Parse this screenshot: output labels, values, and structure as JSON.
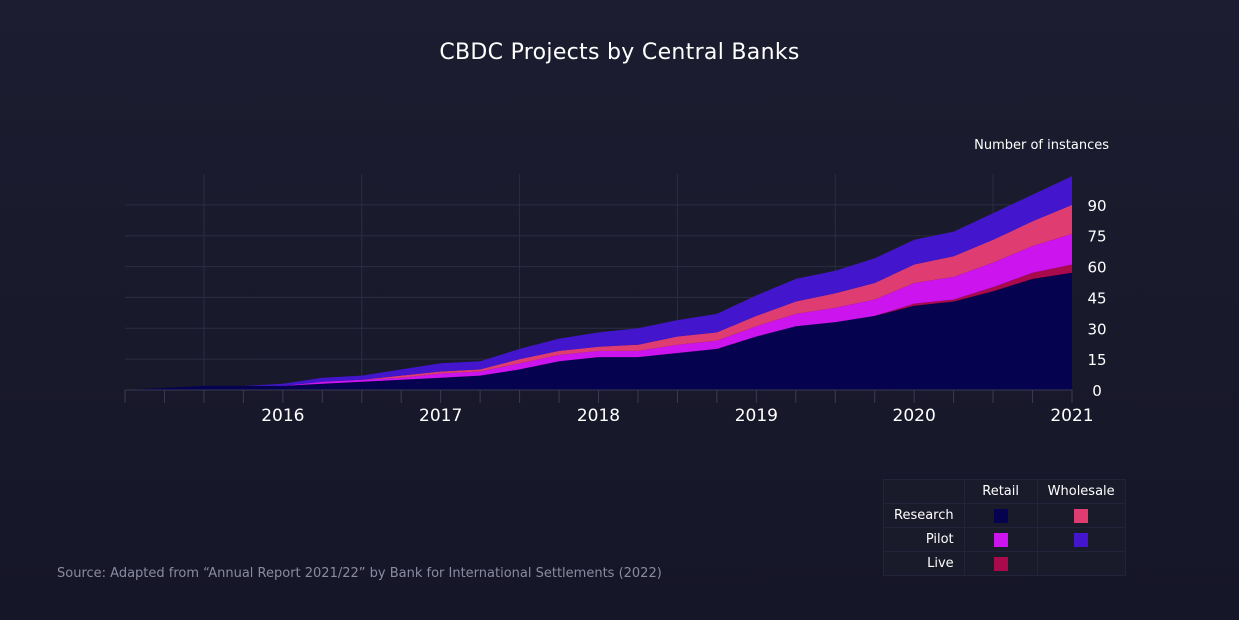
{
  "title": "CBDC Projects by Central Banks",
  "source": "Source: Adapted from “Annual Report 2021/22” by Bank for International Settlements (2022)",
  "legend": {
    "col_retail": "Retail",
    "col_wholesale": "Wholesale",
    "row_research": "Research",
    "row_pilot": "Pilot",
    "row_live": "Live",
    "colors": {
      "research_retail": "#05024f",
      "pilot_retail": "#cc14ee",
      "live_retail": "#a80a4b",
      "research_wholesale": "#df3d72",
      "pilot_wholesale": "#4315cc"
    }
  },
  "chart_data": {
    "type": "area",
    "stacked": true,
    "ylabel": "Number of instances",
    "ylim": [
      0,
      105
    ],
    "yticks": [
      0,
      15,
      30,
      45,
      60,
      75,
      90
    ],
    "xlim": [
      "2015-07",
      "2021-07"
    ],
    "xticks": [
      "2016",
      "2017",
      "2018",
      "2019",
      "2020",
      "2021"
    ],
    "grid": true,
    "x": [
      "2015-07",
      "2015-10",
      "2016-01",
      "2016-04",
      "2016-07",
      "2016-10",
      "2017-01",
      "2017-04",
      "2017-07",
      "2017-10",
      "2018-01",
      "2018-04",
      "2018-07",
      "2018-10",
      "2019-01",
      "2019-04",
      "2019-07",
      "2019-10",
      "2020-01",
      "2020-04",
      "2020-07",
      "2020-10",
      "2021-01",
      "2021-04",
      "2021-07"
    ],
    "series": [
      {
        "name": "Research Retail",
        "values": [
          0,
          1,
          2,
          2,
          2,
          3,
          4,
          5,
          6,
          7,
          10,
          14,
          16,
          16,
          18,
          20,
          26,
          31,
          33,
          36,
          41,
          43,
          48,
          54,
          57
        ]
      },
      {
        "name": "Live Retail",
        "values": [
          0,
          0,
          0,
          0,
          0,
          0,
          0,
          0,
          0,
          0,
          0,
          0,
          0,
          0,
          0,
          0,
          0,
          0,
          0,
          0,
          1,
          1,
          2,
          3,
          4
        ]
      },
      {
        "name": "Pilot Retail",
        "values": [
          0,
          0,
          0,
          0,
          0,
          1,
          1,
          1,
          2,
          2,
          3,
          3,
          3,
          3,
          4,
          4,
          5,
          6,
          7,
          8,
          10,
          11,
          12,
          13,
          15
        ]
      },
      {
        "name": "Research Wholesale",
        "values": [
          0,
          0,
          0,
          0,
          0,
          0,
          0,
          1,
          1,
          1,
          2,
          2,
          2,
          3,
          4,
          4,
          5,
          6,
          7,
          8,
          9,
          10,
          11,
          12,
          14
        ]
      },
      {
        "name": "Pilot Wholesale",
        "values": [
          0,
          0,
          0,
          0,
          1,
          2,
          2,
          3,
          4,
          4,
          5,
          6,
          7,
          8,
          8,
          9,
          10,
          11,
          11,
          12,
          12,
          12,
          13,
          13,
          14
        ]
      }
    ]
  }
}
